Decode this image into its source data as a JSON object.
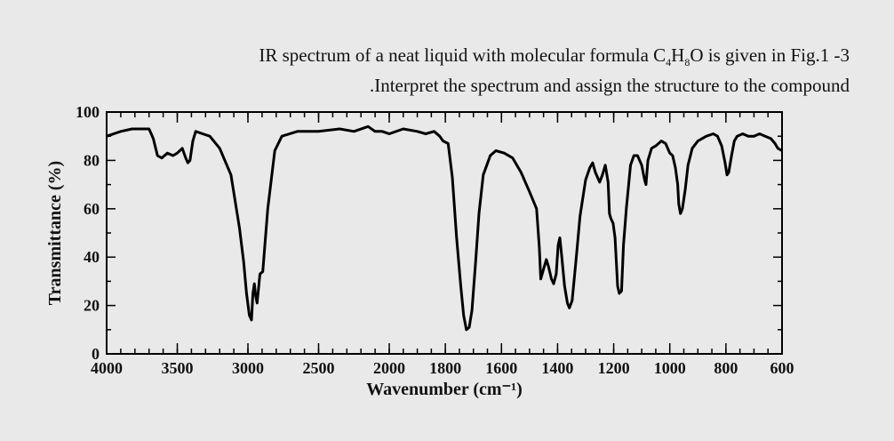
{
  "question": {
    "line1_prefix": "IR spectrum of a neat liquid with molecular formula C",
    "sub1": "4",
    "mid": "H",
    "sub2": "8",
    "line1_suffix": "O is given in Fig.1 -3",
    "line2": ".Interpret the spectrum and assign the structure to the compound"
  },
  "chart_data": {
    "type": "line",
    "title": "",
    "xlabel": "Wavenumber (cm⁻¹)",
    "ylabel": "Transmittance (%)",
    "xlim": [
      4000,
      600
    ],
    "ylim": [
      0,
      100
    ],
    "x_axis_reversed": true,
    "x_ticks": [
      4000,
      3500,
      3000,
      2500,
      2000,
      1800,
      1600,
      1400,
      1200,
      1000,
      800,
      600
    ],
    "y_ticks": [
      0,
      20,
      40,
      60,
      80,
      100
    ],
    "x_breakpoint": 2000,
    "grid": false,
    "legend": "none",
    "line_color": "#000000",
    "series": [
      {
        "points": [
          [
            4000,
            90
          ],
          [
            3900,
            92
          ],
          [
            3820,
            93
          ],
          [
            3700,
            93
          ],
          [
            3670,
            89
          ],
          [
            3640,
            82
          ],
          [
            3610,
            81
          ],
          [
            3570,
            83
          ],
          [
            3530,
            82
          ],
          [
            3500,
            83
          ],
          [
            3465,
            85
          ],
          [
            3440,
            81
          ],
          [
            3425,
            79
          ],
          [
            3410,
            80
          ],
          [
            3390,
            88
          ],
          [
            3370,
            92
          ],
          [
            3320,
            91
          ],
          [
            3270,
            90
          ],
          [
            3200,
            85
          ],
          [
            3120,
            74
          ],
          [
            3060,
            52
          ],
          [
            3030,
            38
          ],
          [
            3010,
            25
          ],
          [
            2990,
            16
          ],
          [
            2975,
            14
          ],
          [
            2965,
            25
          ],
          [
            2955,
            29
          ],
          [
            2945,
            24
          ],
          [
            2935,
            21
          ],
          [
            2925,
            27
          ],
          [
            2915,
            33
          ],
          [
            2895,
            34
          ],
          [
            2860,
            60
          ],
          [
            2810,
            84
          ],
          [
            2760,
            90
          ],
          [
            2650,
            92
          ],
          [
            2500,
            92
          ],
          [
            2350,
            93
          ],
          [
            2250,
            92
          ],
          [
            2150,
            94
          ],
          [
            2100,
            92
          ],
          [
            2050,
            92
          ],
          [
            2000,
            91
          ],
          [
            1950,
            93
          ],
          [
            1900,
            92
          ],
          [
            1870,
            91
          ],
          [
            1840,
            92
          ],
          [
            1820,
            90
          ],
          [
            1808,
            88
          ],
          [
            1790,
            87
          ],
          [
            1775,
            73
          ],
          [
            1760,
            48
          ],
          [
            1745,
            28
          ],
          [
            1735,
            16
          ],
          [
            1725,
            10
          ],
          [
            1715,
            11
          ],
          [
            1705,
            18
          ],
          [
            1692,
            38
          ],
          [
            1680,
            58
          ],
          [
            1665,
            74
          ],
          [
            1640,
            82
          ],
          [
            1620,
            84
          ],
          [
            1590,
            83
          ],
          [
            1560,
            81
          ],
          [
            1530,
            75
          ],
          [
            1500,
            67
          ],
          [
            1475,
            60
          ],
          [
            1465,
            44
          ],
          [
            1460,
            31
          ],
          [
            1450,
            35
          ],
          [
            1440,
            39
          ],
          [
            1432,
            36
          ],
          [
            1422,
            31
          ],
          [
            1414,
            29
          ],
          [
            1405,
            33
          ],
          [
            1398,
            45
          ],
          [
            1392,
            48
          ],
          [
            1385,
            40
          ],
          [
            1375,
            28
          ],
          [
            1365,
            21
          ],
          [
            1358,
            19
          ],
          [
            1348,
            22
          ],
          [
            1335,
            38
          ],
          [
            1320,
            57
          ],
          [
            1300,
            72
          ],
          [
            1285,
            77
          ],
          [
            1275,
            79
          ],
          [
            1265,
            75
          ],
          [
            1250,
            71
          ],
          [
            1240,
            74
          ],
          [
            1230,
            78
          ],
          [
            1220,
            71
          ],
          [
            1215,
            58
          ],
          [
            1210,
            56
          ],
          [
            1202,
            54
          ],
          [
            1195,
            48
          ],
          [
            1186,
            28
          ],
          [
            1180,
            25
          ],
          [
            1172,
            26
          ],
          [
            1165,
            45
          ],
          [
            1155,
            60
          ],
          [
            1140,
            78
          ],
          [
            1128,
            82
          ],
          [
            1115,
            82
          ],
          [
            1100,
            78
          ],
          [
            1090,
            72
          ],
          [
            1085,
            70
          ],
          [
            1078,
            80
          ],
          [
            1065,
            85
          ],
          [
            1050,
            86
          ],
          [
            1030,
            88
          ],
          [
            1015,
            87
          ],
          [
            1000,
            83
          ],
          [
            990,
            82
          ],
          [
            980,
            77
          ],
          [
            972,
            70
          ],
          [
            968,
            62
          ],
          [
            962,
            58
          ],
          [
            955,
            60
          ],
          [
            945,
            68
          ],
          [
            935,
            78
          ],
          [
            920,
            85
          ],
          [
            900,
            88
          ],
          [
            870,
            90
          ],
          [
            845,
            91
          ],
          [
            830,
            90
          ],
          [
            815,
            86
          ],
          [
            803,
            79
          ],
          [
            796,
            74
          ],
          [
            790,
            75
          ],
          [
            780,
            82
          ],
          [
            770,
            88
          ],
          [
            760,
            90
          ],
          [
            740,
            91
          ],
          [
            720,
            90
          ],
          [
            700,
            90
          ],
          [
            680,
            91
          ],
          [
            660,
            90
          ],
          [
            640,
            89
          ],
          [
            625,
            87
          ],
          [
            615,
            85
          ],
          [
            600,
            84
          ]
        ]
      }
    ]
  }
}
